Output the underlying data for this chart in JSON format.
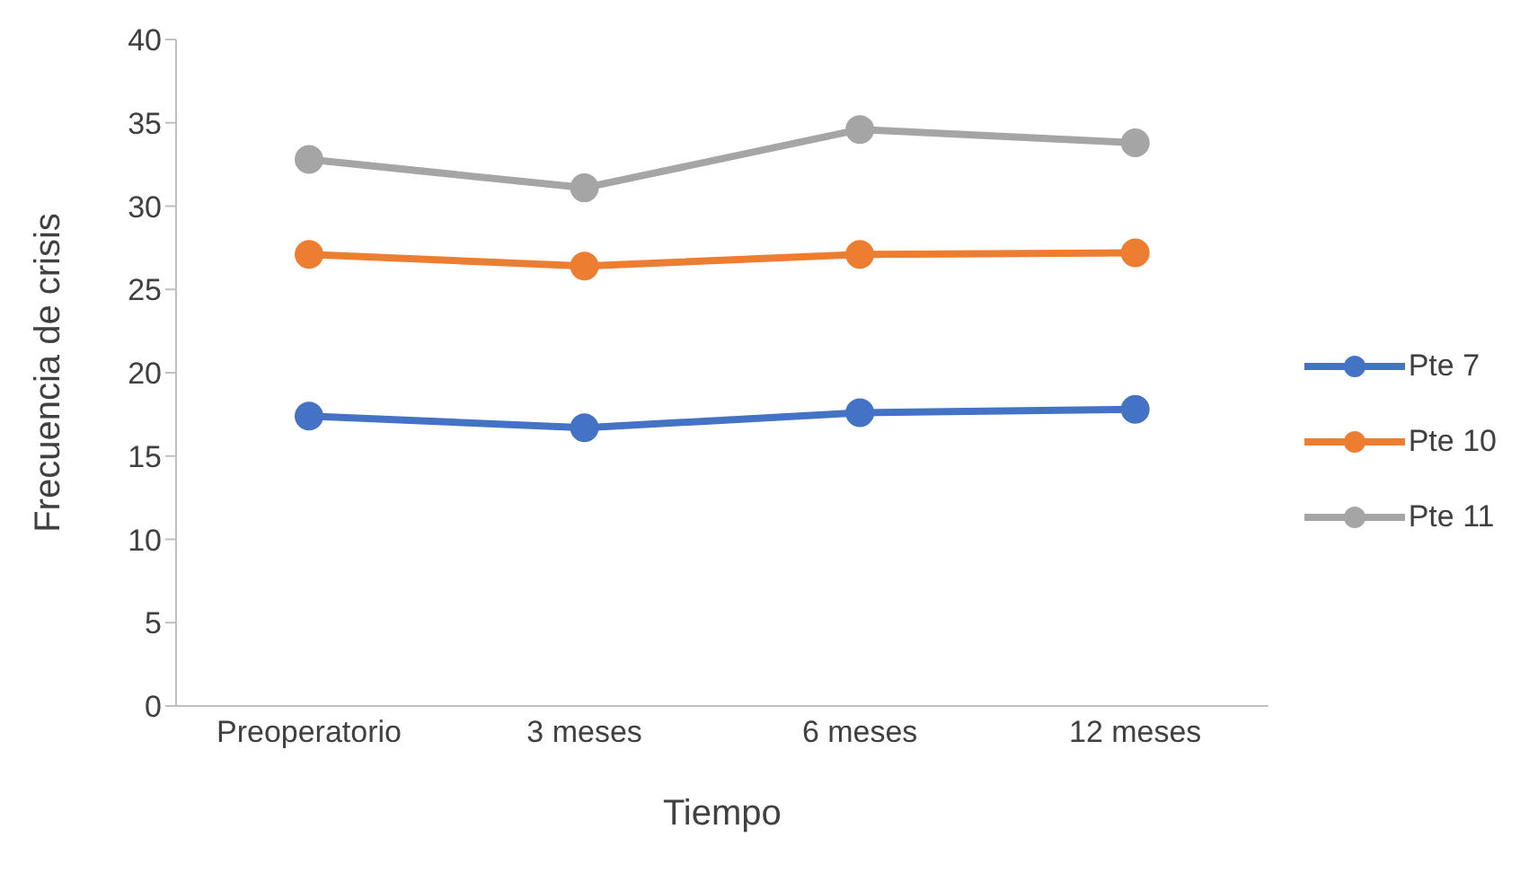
{
  "chart_data": {
    "type": "line",
    "xlabel": "Tiempo",
    "ylabel": "Frecuencia de crisis",
    "categories": [
      "Preoperatorio",
      "3 meses",
      "6 meses",
      "12 meses"
    ],
    "series": [
      {
        "name": "Pte 7",
        "color": "#4472c4",
        "values": [
          17.4,
          16.7,
          17.6,
          17.8
        ]
      },
      {
        "name": "Pte 10",
        "color": "#ed7d31",
        "values": [
          27.1,
          26.4,
          27.1,
          27.2
        ]
      },
      {
        "name": "Pte 11",
        "color": "#a5a5a5",
        "values": [
          32.8,
          31.1,
          34.6,
          33.8
        ]
      }
    ],
    "ylim": [
      0,
      40
    ],
    "yticks": [
      0,
      5,
      10,
      15,
      20,
      25,
      30,
      35,
      40
    ],
    "legend": "right",
    "marker": "circle",
    "line_style": "solid"
  }
}
